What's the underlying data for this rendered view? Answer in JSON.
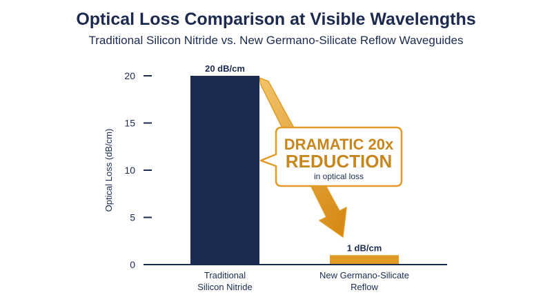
{
  "chart_data": {
    "type": "bar",
    "title": "Optical Loss Comparison at Visible Wavelengths",
    "subtitle": "Traditional Silicon Nitride vs. New Germano-Silicate Reflow Waveguides",
    "ylabel": "Optical Loss (dB/cm)",
    "xlabel": "",
    "ylim": [
      0,
      20
    ],
    "yticks": [
      0,
      5,
      10,
      15,
      20
    ],
    "categories": [
      [
        "Traditional",
        "Silicon Nitride"
      ],
      [
        "New Germano-Silicate",
        "Reflow"
      ]
    ],
    "values": [
      20,
      1
    ],
    "value_labels": [
      "20 dB/cm",
      "1 dB/cm"
    ],
    "bar_colors": [
      "#1b2a4e",
      "#e29a26"
    ],
    "grid": false,
    "legend": "none",
    "annotation": {
      "line1": "DRAMATIC 20x",
      "line2": "REDUCTION",
      "line3": "in optical loss",
      "color": "#e29a26",
      "text_color": "#c7861c"
    }
  },
  "colors": {
    "navy": "#1b2a4e",
    "gold": "#e29a26"
  }
}
